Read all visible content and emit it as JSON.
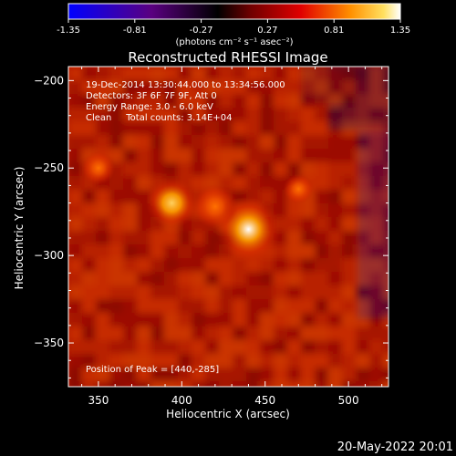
{
  "colorbar": {
    "ticks": [
      "-1.35",
      "-0.81",
      "-0.27",
      "0.27",
      "0.81",
      "1.35"
    ],
    "unit_label": "(photons cm⁻² s⁻¹ asec⁻²)",
    "min": -1.35,
    "max": 1.35
  },
  "chart_data": {
    "type": "heatmap",
    "title": "Reconstructed RHESSI Image",
    "xlabel": "Heliocentric X (arcsec)",
    "ylabel": "Heliocentric Y (arcsec)",
    "xlim": [
      332,
      524
    ],
    "ylim": [
      -375,
      -192
    ],
    "xticks": [
      350,
      400,
      450,
      500
    ],
    "yticks": [
      -200,
      -250,
      -300,
      -350
    ],
    "colormap": "hot (red-yellow-white)",
    "sources": [
      {
        "x": 440,
        "y": -285,
        "peak": 1.35
      },
      {
        "x": 394,
        "y": -270,
        "peak": 0.95
      },
      {
        "x": 420,
        "y": -272,
        "peak": 0.75
      },
      {
        "x": 350,
        "y": -250,
        "peak": 0.45
      },
      {
        "x": 470,
        "y": -262,
        "peak": 0.35
      }
    ],
    "annotations": {
      "time_range": "19-Dec-2014 13:30:44.000 to 13:34:56.000",
      "detectors": "Detectors: 3F 6F 7F 9F, Att 0",
      "energy": "Energy Range: 3.0 - 6.0 keV",
      "clean": "Clean     Total counts: 3.14E+04",
      "peak_position": "Position of Peak = [440,-285]"
    }
  },
  "footer": {
    "date": "20-May-2022 20:01"
  }
}
